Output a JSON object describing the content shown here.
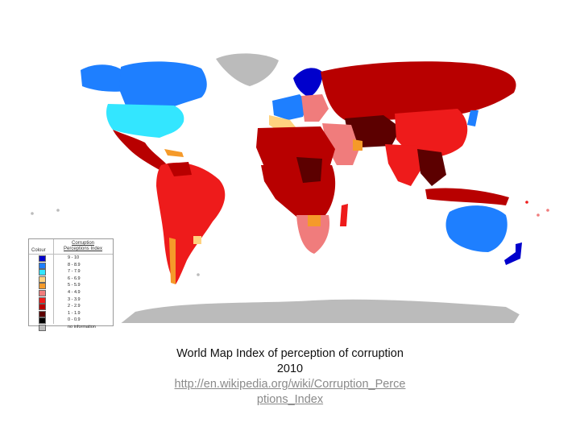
{
  "caption": {
    "title_line1": "World Map Index of perception of corruption",
    "title_line2": "2010",
    "link_line1": "http://en.wikipedia.org/wiki/Corruption_Perce",
    "link_line2": "ptions_Index"
  },
  "legend": {
    "column_header": "Colour",
    "index_header_line1": "Corruption",
    "index_header_line2": "Perceptions Index",
    "items": [
      {
        "label": "9 - 10",
        "color": "#0000cc"
      },
      {
        "label": "8 - 8.9",
        "color": "#1e7fff"
      },
      {
        "label": "7 - 7.9",
        "color": "#33e6ff"
      },
      {
        "label": "6 - 6.9",
        "color": "#ffd27f"
      },
      {
        "label": "5 - 5.9",
        "color": "#f59a2a"
      },
      {
        "label": "4 - 4.9",
        "color": "#f07c7c"
      },
      {
        "label": "3 - 3.9",
        "color": "#ee1b1b"
      },
      {
        "label": "2 - 2.9",
        "color": "#b80000"
      },
      {
        "label": "1 - 1.9",
        "color": "#5c0000"
      },
      {
        "label": "0 - 0.9",
        "color": "#000000"
      },
      {
        "label": "no information",
        "color": "#bbbbbb"
      }
    ]
  }
}
